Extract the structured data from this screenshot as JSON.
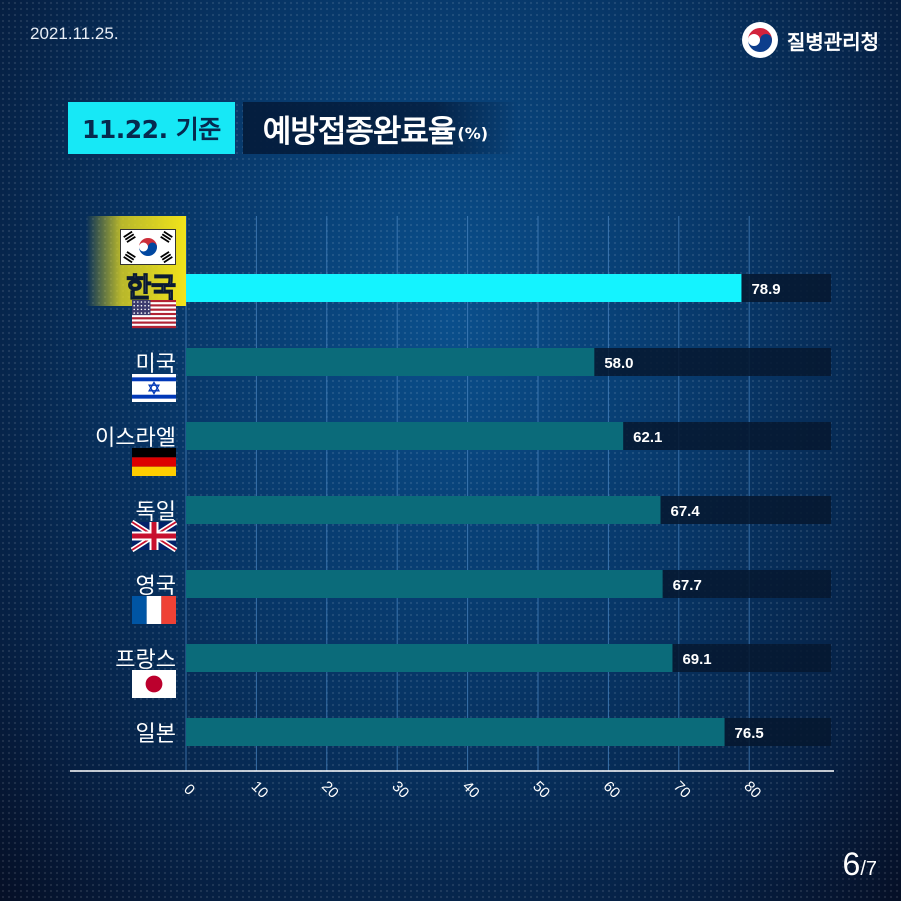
{
  "header": {
    "date": "2021.11.25.",
    "org_name": "질병관리청"
  },
  "title": {
    "badge": "11.22. 기준",
    "main": "예방접종완료율",
    "unit": "(%)"
  },
  "page": {
    "current": "6",
    "total": "/7"
  },
  "colors": {
    "highlight_bar": "#14f3ff",
    "bar": "#0b6b7a",
    "track": "#06172f",
    "highlight_label_bg": "#f2e31a",
    "grid": "#4a86c2"
  },
  "chart_data": {
    "type": "bar",
    "orientation": "horizontal",
    "categories": [
      "한국",
      "미국",
      "이스라엘",
      "독일",
      "영국",
      "프랑스",
      "일본"
    ],
    "values": [
      78.9,
      58.0,
      62.1,
      67.4,
      67.7,
      69.1,
      76.5
    ],
    "value_labels": [
      "78.9",
      "58.0",
      "62.1",
      "67.4",
      "67.7",
      "69.1",
      "76.5"
    ],
    "flags": [
      "korea-flag-icon",
      "usa-flag-icon",
      "israel-flag-icon",
      "germany-flag-icon",
      "uk-flag-icon",
      "france-flag-icon",
      "japan-flag-icon"
    ],
    "highlight": "한국",
    "xticks": [
      "0",
      "10",
      "20",
      "30",
      "40",
      "50",
      "60",
      "70",
      "80"
    ],
    "xlim": [
      0,
      92
    ],
    "grid": true
  }
}
